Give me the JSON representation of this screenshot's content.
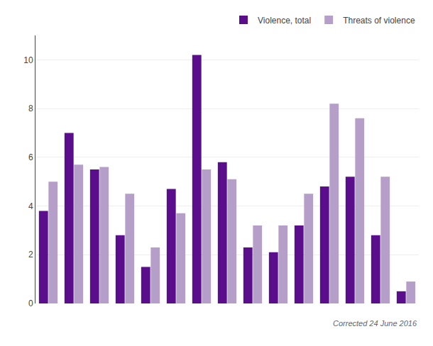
{
  "chart_data": {
    "type": "bar",
    "categories": [
      null,
      null,
      null,
      null,
      null,
      null,
      null,
      null,
      null,
      null,
      null,
      null,
      null,
      null,
      null
    ],
    "series": [
      {
        "name": "Violence, total",
        "color": "#5b0e8c",
        "values": [
          3.8,
          7.0,
          5.5,
          2.8,
          1.5,
          4.7,
          10.2,
          5.8,
          2.3,
          2.1,
          3.2,
          4.8,
          5.2,
          2.8,
          0.5
        ]
      },
      {
        "name": "Threats of violence",
        "color": "#b59fc8",
        "values": [
          5.0,
          5.7,
          5.6,
          4.5,
          2.3,
          3.7,
          5.5,
          5.1,
          3.2,
          3.2,
          4.5,
          8.2,
          7.6,
          5.2,
          0.9
        ]
      }
    ],
    "ylim": [
      0,
      11
    ],
    "yticks": [
      0,
      2,
      4,
      6,
      8,
      10
    ],
    "grid": true,
    "legend": "upper right",
    "tick_labels": "y",
    "annotations": [
      "Corrected 24 June 2016"
    ]
  }
}
